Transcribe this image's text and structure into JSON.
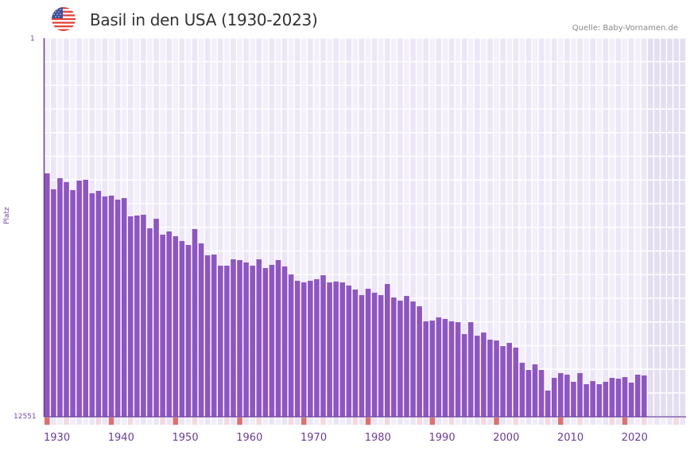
{
  "header": {
    "title": "Basil in den USA (1930-2023)",
    "source": "Quelle: Baby-Vornamen.de",
    "flag_icon": "us-flag-icon"
  },
  "axes": {
    "y_title": "Platz",
    "y_top_label": "1",
    "y_bottom_label": "12551",
    "x_ticks": [
      "1930",
      "1940",
      "1950",
      "1960",
      "1970",
      "1980",
      "1990",
      "2000",
      "2010",
      "2020"
    ]
  },
  "colors": {
    "bar": "#8e55c4",
    "axis": "#6a3d9a",
    "grid_bg_a": "#f3effb",
    "grid_bg_b": "#ece6f7",
    "future_bg": "#e3def0",
    "marker_strong": "#e07070",
    "marker_light": "#f5d8e0"
  },
  "chart_data": {
    "type": "bar",
    "title": "Basil in den USA (1930-2023)",
    "xlabel": "",
    "ylabel": "Platz",
    "ylim": [
      1,
      12551
    ],
    "y_inverted": true,
    "x_range": [
      1930,
      2030
    ],
    "grid": true,
    "categories": [
      1930,
      1931,
      1932,
      1933,
      1934,
      1935,
      1936,
      1937,
      1938,
      1939,
      1940,
      1941,
      1942,
      1943,
      1944,
      1945,
      1946,
      1947,
      1948,
      1949,
      1950,
      1951,
      1952,
      1953,
      1954,
      1955,
      1956,
      1957,
      1958,
      1959,
      1960,
      1961,
      1962,
      1963,
      1964,
      1965,
      1966,
      1967,
      1968,
      1969,
      1970,
      1971,
      1972,
      1973,
      1974,
      1975,
      1976,
      1977,
      1978,
      1979,
      1980,
      1981,
      1982,
      1983,
      1984,
      1985,
      1986,
      1987,
      1988,
      1989,
      1990,
      1991,
      1992,
      1993,
      1994,
      1995,
      1996,
      1997,
      1998,
      1999,
      2000,
      2001,
      2002,
      2003,
      2004,
      2005,
      2006,
      2007,
      2008,
      2009,
      2010,
      2011,
      2012,
      2013,
      2014,
      2015,
      2016,
      2017,
      2018,
      2019,
      2020,
      2021,
      2022,
      2023
    ],
    "values": [
      4483,
      5010,
      4641,
      4773,
      5037,
      4720,
      4694,
      5142,
      5063,
      5248,
      5221,
      5353,
      5300,
      5907,
      5880,
      5854,
      6302,
      5986,
      6513,
      6408,
      6566,
      6724,
      6856,
      6328,
      6803,
      7199,
      7173,
      7542,
      7542,
      7331,
      7357,
      7436,
      7542,
      7331,
      7621,
      7515,
      7357,
      7568,
      7832,
      8043,
      8096,
      8043,
      7990,
      7858,
      8096,
      8069,
      8096,
      8201,
      8333,
      8518,
      8307,
      8439,
      8518,
      8149,
      8597,
      8702,
      8544,
      8729,
      8887,
      9388,
      9362,
      9257,
      9309,
      9388,
      9415,
      9810,
      9415,
      9863,
      9758,
      9995,
      10022,
      10206,
      10101,
      10259,
      10760,
      10997,
      10813,
      10997,
      11682,
      11261,
      11103,
      11155,
      11392,
      11103,
      11471,
      11366,
      11471,
      11392,
      11261,
      11287,
      11234,
      11419,
      11155,
      11181
    ]
  }
}
